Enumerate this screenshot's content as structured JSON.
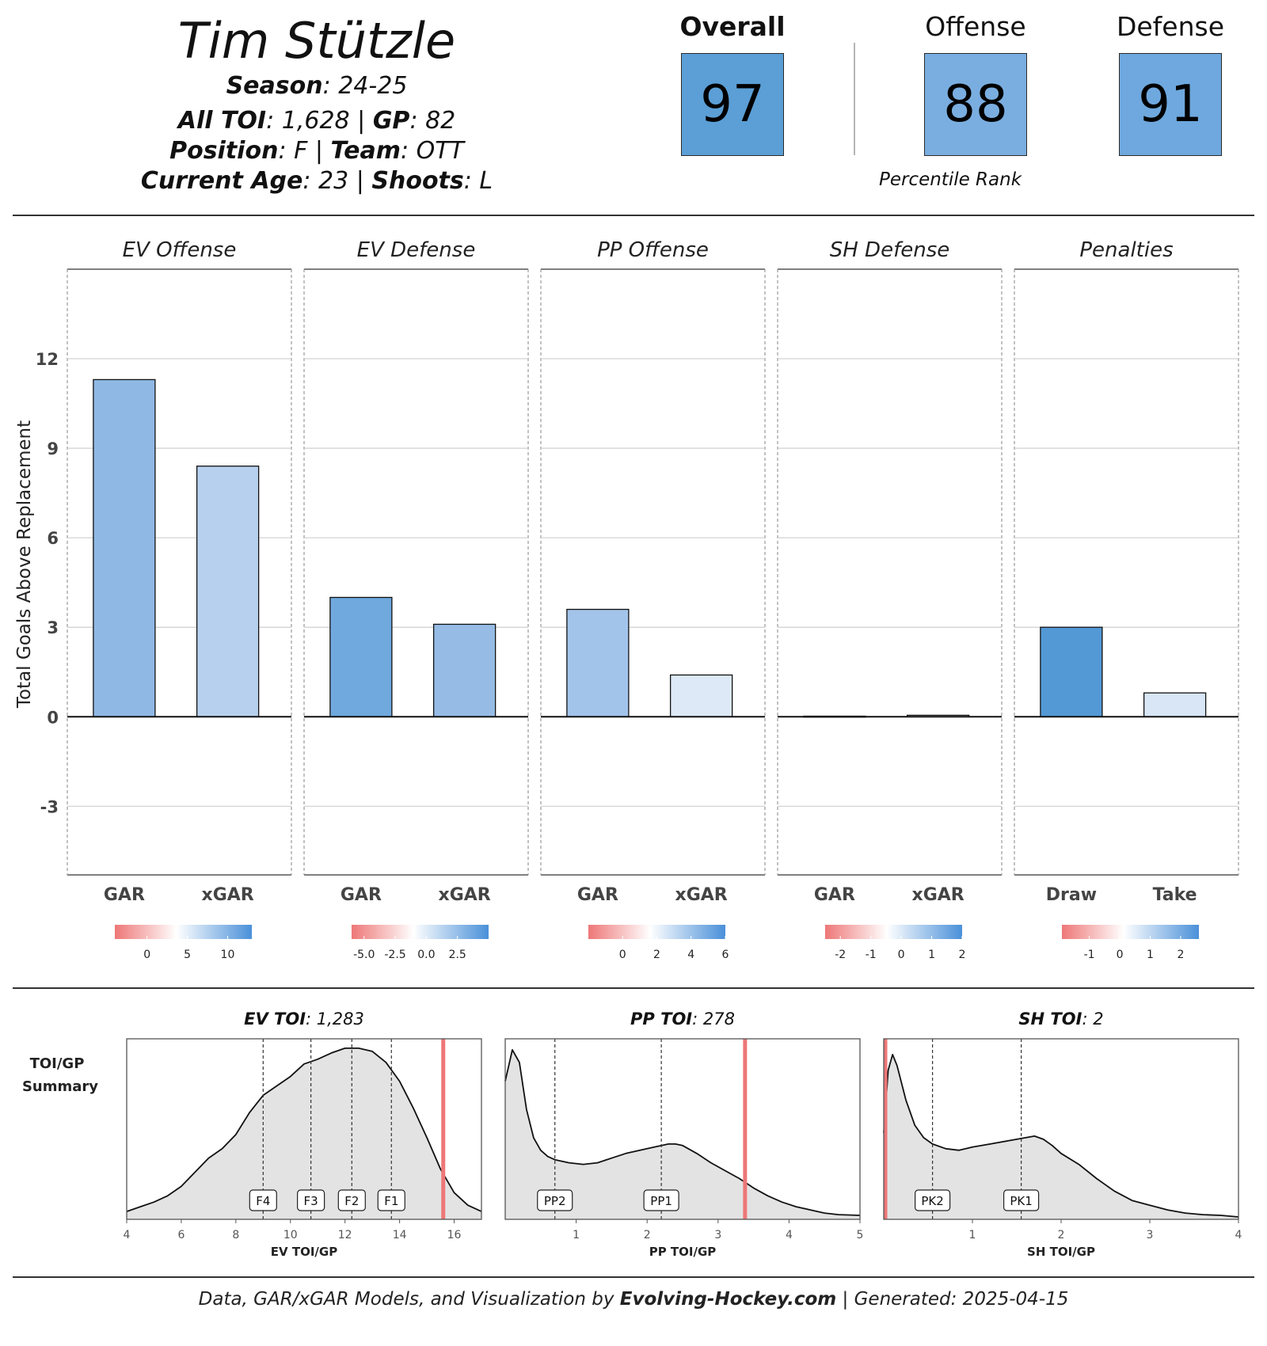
{
  "header": {
    "player_name": "Tim Stützle",
    "season_label": "Season",
    "season_value": ": 24-25",
    "toi_label": "All TOI",
    "toi_value": ": 1,628 | ",
    "gp_label": "GP",
    "gp_value": ": 82",
    "position_label": "Position",
    "position_value": ": F | ",
    "team_label": "Team",
    "team_value": ": OTT",
    "age_label": "Current Age",
    "age_value": ": 23 | ",
    "shoots_label": "Shoots",
    "shoots_value": ": L"
  },
  "ratings": {
    "overall_label": "Overall",
    "overall_value": "97",
    "overall_color": "#5b9fd6",
    "offense_label": "Offense",
    "offense_value": "88",
    "offense_color": "#7aaee0",
    "defense_label": "Defense",
    "defense_value": "91",
    "defense_color": "#6ea8de",
    "percentile_label": "Percentile Rank"
  },
  "chart_data": [
    {
      "type": "bar",
      "ylabel": "Total Goals Above Replacement",
      "yticks": [
        12,
        9,
        6,
        3,
        0,
        -3
      ],
      "ylim": [
        -5.3,
        15
      ],
      "grid": true,
      "panels": [
        {
          "title": "EV Offense",
          "categories": [
            "GAR",
            "xGAR"
          ],
          "values": [
            11.3,
            8.4
          ],
          "colors": [
            "#8fb9e4",
            "#b7d0ee"
          ],
          "legend_ticks": [
            "0",
            "5",
            "10"
          ],
          "legend_range": [
            -4,
            13
          ]
        },
        {
          "title": "EV Defense",
          "categories": [
            "GAR",
            "xGAR"
          ],
          "values": [
            4.0,
            3.1
          ],
          "colors": [
            "#6fa9dd",
            "#96bce6"
          ],
          "legend_ticks": [
            "-5.0",
            "-2.5",
            "0.0",
            "2.5"
          ],
          "legend_range": [
            -6.0,
            5.0
          ]
        },
        {
          "title": "PP Offense",
          "categories": [
            "GAR",
            "xGAR"
          ],
          "values": [
            3.6,
            1.4
          ],
          "colors": [
            "#a3c4ea",
            "#dde9f6"
          ],
          "legend_ticks": [
            "0",
            "2",
            "4",
            "6"
          ],
          "legend_range": [
            -2.0,
            6.0
          ]
        },
        {
          "title": "SH Defense",
          "categories": [
            "GAR",
            "xGAR"
          ],
          "values": [
            0.02,
            0.05
          ],
          "colors": [
            "#f5f5f5",
            "#f1f4f8"
          ],
          "legend_ticks": [
            "-2",
            "-1",
            "0",
            "1",
            "2"
          ],
          "legend_range": [
            -2.5,
            2.0
          ]
        },
        {
          "title": "Penalties",
          "categories": [
            "Draw",
            "Take"
          ],
          "values": [
            3.0,
            0.8
          ],
          "colors": [
            "#5399d6",
            "#d8e6f6"
          ],
          "legend_ticks": [
            "-1",
            "0",
            "1",
            "2"
          ],
          "legend_range": [
            -1.9,
            2.6
          ]
        }
      ]
    },
    {
      "type": "area",
      "row_label": [
        "TOI/GP",
        "Summary"
      ],
      "panels": [
        {
          "title_label": "EV TOI",
          "title_value": ": 1,283",
          "xlabel": "EV TOI/GP",
          "xlim": [
            4,
            17
          ],
          "xticks": [
            4,
            6,
            8,
            10,
            12,
            14,
            16
          ],
          "x": [
            4,
            4.5,
            5,
            5.5,
            6,
            6.5,
            7,
            7.5,
            8,
            8.5,
            9,
            9.5,
            10,
            10.5,
            11,
            11.5,
            12,
            12.5,
            13,
            13.5,
            14,
            14.5,
            15,
            15.5,
            16,
            16.5,
            17
          ],
          "y": [
            0.05,
            0.08,
            0.11,
            0.15,
            0.21,
            0.3,
            0.39,
            0.45,
            0.54,
            0.68,
            0.79,
            0.85,
            0.91,
            0.99,
            1.02,
            1.06,
            1.09,
            1.09,
            1.07,
            1.0,
            0.88,
            0.71,
            0.52,
            0.32,
            0.17,
            0.09,
            0.05
          ],
          "markers": [
            {
              "label": "F4",
              "x": 9.0
            },
            {
              "label": "F3",
              "x": 10.75
            },
            {
              "label": "F2",
              "x": 12.25
            },
            {
              "label": "F1",
              "x": 13.7
            }
          ],
          "player_x": 15.6
        },
        {
          "title_label": "PP TOI",
          "title_value": ": 278",
          "xlabel": "PP TOI/GP",
          "xlim": [
            0,
            5
          ],
          "xticks": [
            1,
            2,
            3,
            4,
            5
          ],
          "x": [
            0,
            0.1,
            0.2,
            0.3,
            0.4,
            0.5,
            0.6,
            0.7,
            0.9,
            1.1,
            1.3,
            1.5,
            1.7,
            1.9,
            2.1,
            2.3,
            2.4,
            2.5,
            2.7,
            2.9,
            3.1,
            3.3,
            3.5,
            3.7,
            3.9,
            4.1,
            4.3,
            4.5,
            4.7,
            5
          ],
          "y": [
            0.88,
            1.08,
            1.0,
            0.7,
            0.52,
            0.44,
            0.4,
            0.38,
            0.36,
            0.35,
            0.36,
            0.39,
            0.42,
            0.44,
            0.46,
            0.48,
            0.48,
            0.47,
            0.42,
            0.36,
            0.31,
            0.26,
            0.2,
            0.15,
            0.11,
            0.08,
            0.06,
            0.04,
            0.03,
            0.025
          ],
          "markers": [
            {
              "label": "PP2",
              "x": 0.7
            },
            {
              "label": "PP1",
              "x": 2.2
            }
          ],
          "player_x": 3.38
        },
        {
          "title_label": "SH TOI",
          "title_value": ": 2",
          "xlabel": "SH TOI/GP",
          "xlim": [
            0,
            4
          ],
          "xticks": [
            1,
            2,
            3,
            4
          ],
          "x": [
            0,
            0.05,
            0.1,
            0.15,
            0.25,
            0.35,
            0.45,
            0.55,
            0.7,
            0.85,
            1.0,
            1.2,
            1.4,
            1.6,
            1.7,
            1.8,
            1.9,
            2.0,
            2.2,
            2.4,
            2.6,
            2.8,
            3.0,
            3.2,
            3.4,
            3.6,
            3.8,
            4.0
          ],
          "y": [
            0.55,
            0.95,
            1.05,
            0.98,
            0.76,
            0.6,
            0.52,
            0.48,
            0.45,
            0.44,
            0.46,
            0.48,
            0.5,
            0.52,
            0.53,
            0.51,
            0.47,
            0.42,
            0.35,
            0.26,
            0.18,
            0.12,
            0.09,
            0.06,
            0.04,
            0.03,
            0.025,
            0.015
          ],
          "markers": [
            {
              "label": "PK2",
              "x": 0.55
            },
            {
              "label": "PK1",
              "x": 1.55
            }
          ],
          "player_x": 0.0
        }
      ]
    }
  ],
  "footer": {
    "prefix": "Data, GAR/xGAR Models, and Visualization by ",
    "site": "Evolving-Hockey.com",
    "suffix": " | Generated: 2025-04-15"
  },
  "colors": {
    "player_line": "#ee7777",
    "density_fill": "#e3e3e3",
    "gradient_neg": "#ee7777",
    "gradient_mid": "#ffffff",
    "gradient_pos": "#4a90d9"
  }
}
